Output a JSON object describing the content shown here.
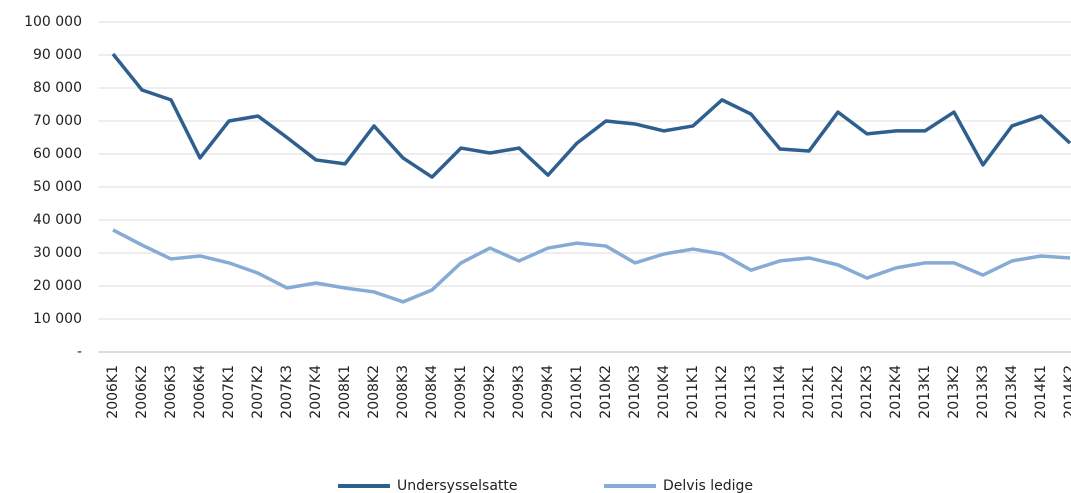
{
  "chart_data": {
    "type": "line",
    "categories": [
      "2006K1",
      "2006K2",
      "2006K3",
      "2006K4",
      "2007K1",
      "2007K2",
      "2007K3",
      "2007K4",
      "2008K1",
      "2008K2",
      "2008K3",
      "2008K4",
      "2009K1",
      "2009K2",
      "2009K3",
      "2009K4",
      "2010K1",
      "2010K2",
      "2010K3",
      "2010K4",
      "2011K1",
      "2011K2",
      "2011K3",
      "2011K4",
      "2012K1",
      "2012K2",
      "2012K3",
      "2012K4",
      "2013K1",
      "2013K2",
      "2013K3",
      "2013K4",
      "2014K1",
      "2014K2"
    ],
    "series": [
      {
        "name": "Undersysselsatte",
        "color": "#2f5f8f",
        "values": [
          90300,
          79400,
          76400,
          58800,
          70000,
          71500,
          65000,
          58200,
          57000,
          68500,
          58800,
          53000,
          61800,
          60300,
          61800,
          53600,
          63300,
          70000,
          69100,
          67000,
          68500,
          76400,
          72100,
          61500,
          60900,
          72700,
          66100,
          67000,
          67000,
          72700,
          56700,
          68500,
          71500,
          63300
        ]
      },
      {
        "name": "Delvis ledige",
        "color": "#86abd6",
        "values": [
          37000,
          32400,
          28200,
          29100,
          27000,
          23900,
          19400,
          20900,
          19400,
          18200,
          15200,
          18800,
          27000,
          31500,
          27600,
          31500,
          33000,
          32100,
          27000,
          29700,
          31200,
          29700,
          24800,
          27600,
          28500,
          26400,
          22400,
          25500,
          27000,
          27000,
          23300,
          27600,
          29100,
          28500
        ]
      }
    ],
    "ylim": [
      0,
      100000
    ],
    "yticks": [
      {
        "value": 0,
        "label": "-"
      },
      {
        "value": 10000,
        "label": "10 000"
      },
      {
        "value": 20000,
        "label": "20 000"
      },
      {
        "value": 30000,
        "label": "30 000"
      },
      {
        "value": 40000,
        "label": "40 000"
      },
      {
        "value": 50000,
        "label": "50 000"
      },
      {
        "value": 60000,
        "label": "60 000"
      },
      {
        "value": 70000,
        "label": "70 000"
      },
      {
        "value": 80000,
        "label": "80 000"
      },
      {
        "value": 90000,
        "label": "90 000"
      },
      {
        "value": 100000,
        "label": "100 000"
      }
    ],
    "grid": true,
    "legend": "bottom"
  }
}
